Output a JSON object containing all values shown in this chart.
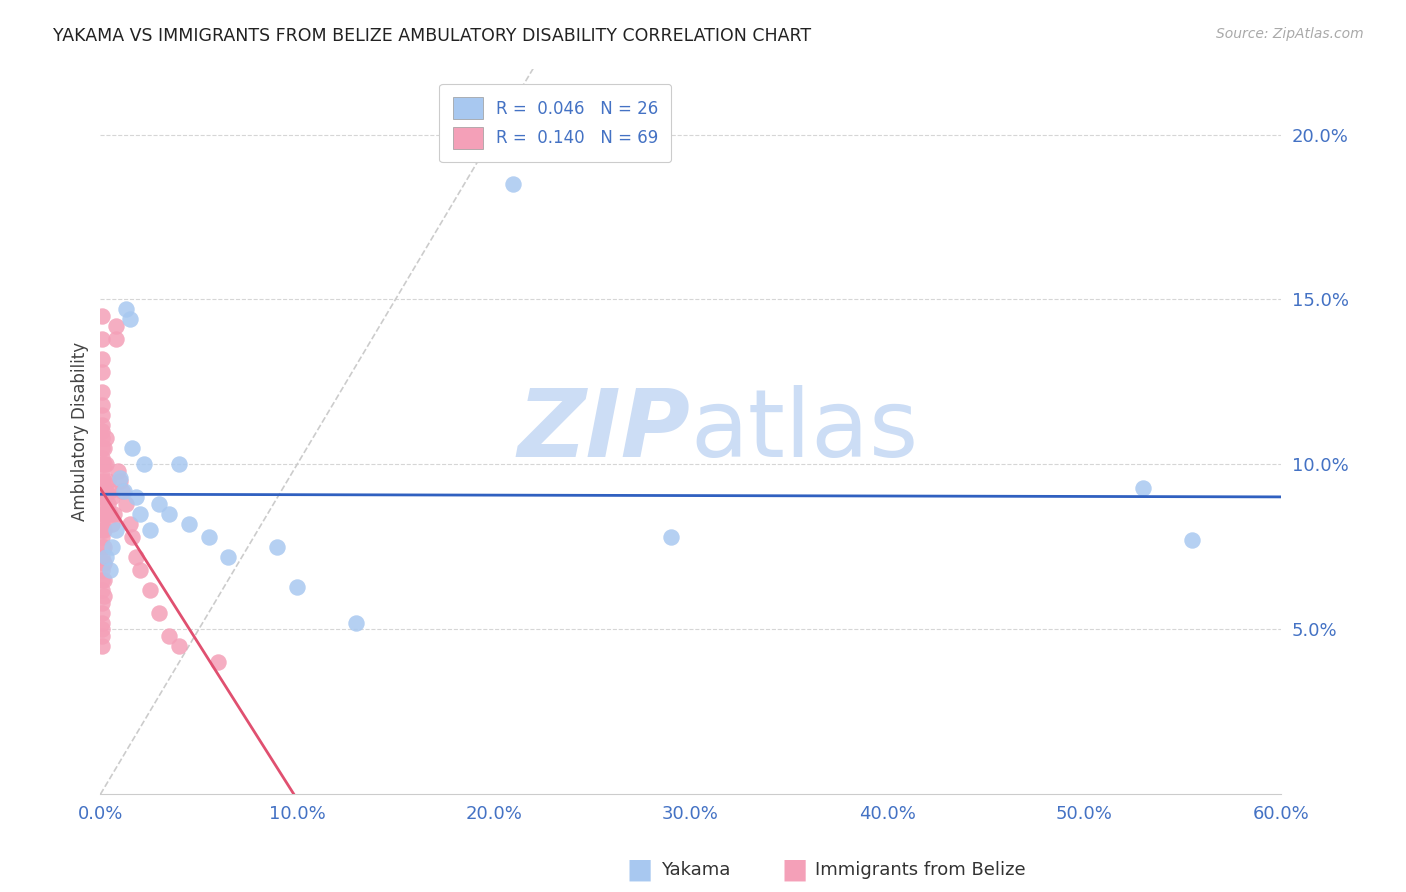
{
  "title": "YAKAMA VS IMMIGRANTS FROM BELIZE AMBULATORY DISABILITY CORRELATION CHART",
  "source": "Source: ZipAtlas.com",
  "ylabel": "Ambulatory Disability",
  "xlim": [
    0.0,
    0.6
  ],
  "ylim": [
    0.0,
    0.22
  ],
  "x_ticks": [
    0.0,
    0.1,
    0.2,
    0.3,
    0.4,
    0.5,
    0.6
  ],
  "x_tick_labels": [
    "0.0%",
    "10.0%",
    "20.0%",
    "30.0%",
    "40.0%",
    "50.0%",
    "60.0%"
  ],
  "y_ticks": [
    0.05,
    0.1,
    0.15,
    0.2
  ],
  "y_tick_labels": [
    "5.0%",
    "10.0%",
    "15.0%",
    "20.0%"
  ],
  "title_color": "#222222",
  "source_color": "#aaaaaa",
  "axis_tick_color": "#4472c4",
  "background_color": "#ffffff",
  "grid_color": "#cccccc",
  "watermark_zip": "ZIP",
  "watermark_atlas": "atlas",
  "watermark_color": "#ccddf5",
  "legend_label1": "Yakama",
  "legend_label2": "Immigrants from Belize",
  "color_yakama": "#a8c8f0",
  "color_belize": "#f4a0b8",
  "line_color_yakama": "#3060c0",
  "line_color_belize": "#e05070",
  "diagonal_color": "#cccccc",
  "yakama_x": [
    0.003,
    0.005,
    0.006,
    0.008,
    0.01,
    0.012,
    0.013,
    0.015,
    0.016,
    0.018,
    0.02,
    0.022,
    0.025,
    0.03,
    0.035,
    0.04,
    0.045,
    0.055,
    0.065,
    0.09,
    0.1,
    0.13,
    0.21,
    0.29,
    0.53,
    0.555
  ],
  "yakama_y": [
    0.072,
    0.068,
    0.075,
    0.08,
    0.096,
    0.092,
    0.147,
    0.144,
    0.105,
    0.09,
    0.085,
    0.1,
    0.08,
    0.088,
    0.085,
    0.1,
    0.082,
    0.078,
    0.072,
    0.075,
    0.063,
    0.052,
    0.185,
    0.078,
    0.093,
    0.077
  ],
  "belize_x": [
    0.001,
    0.001,
    0.001,
    0.001,
    0.001,
    0.001,
    0.001,
    0.001,
    0.001,
    0.001,
    0.001,
    0.001,
    0.001,
    0.001,
    0.001,
    0.001,
    0.001,
    0.001,
    0.001,
    0.001,
    0.001,
    0.001,
    0.001,
    0.001,
    0.001,
    0.001,
    0.001,
    0.001,
    0.001,
    0.001,
    0.001,
    0.001,
    0.001,
    0.002,
    0.002,
    0.002,
    0.002,
    0.002,
    0.002,
    0.002,
    0.002,
    0.002,
    0.002,
    0.003,
    0.003,
    0.003,
    0.003,
    0.004,
    0.004,
    0.005,
    0.005,
    0.006,
    0.006,
    0.007,
    0.008,
    0.008,
    0.009,
    0.01,
    0.011,
    0.013,
    0.015,
    0.016,
    0.018,
    0.02,
    0.025,
    0.03,
    0.035,
    0.04,
    0.06
  ],
  "belize_y": [
    0.145,
    0.138,
    0.132,
    0.128,
    0.122,
    0.118,
    0.115,
    0.112,
    0.11,
    0.108,
    0.105,
    0.102,
    0.1,
    0.098,
    0.095,
    0.092,
    0.09,
    0.088,
    0.085,
    0.082,
    0.08,
    0.078,
    0.075,
    0.072,
    0.068,
    0.065,
    0.062,
    0.058,
    0.055,
    0.052,
    0.05,
    0.048,
    0.045,
    0.105,
    0.1,
    0.095,
    0.09,
    0.085,
    0.08,
    0.075,
    0.07,
    0.065,
    0.06,
    0.108,
    0.1,
    0.092,
    0.085,
    0.095,
    0.088,
    0.092,
    0.085,
    0.09,
    0.082,
    0.085,
    0.138,
    0.142,
    0.098,
    0.095,
    0.092,
    0.088,
    0.082,
    0.078,
    0.072,
    0.068,
    0.062,
    0.055,
    0.048,
    0.045,
    0.04
  ]
}
